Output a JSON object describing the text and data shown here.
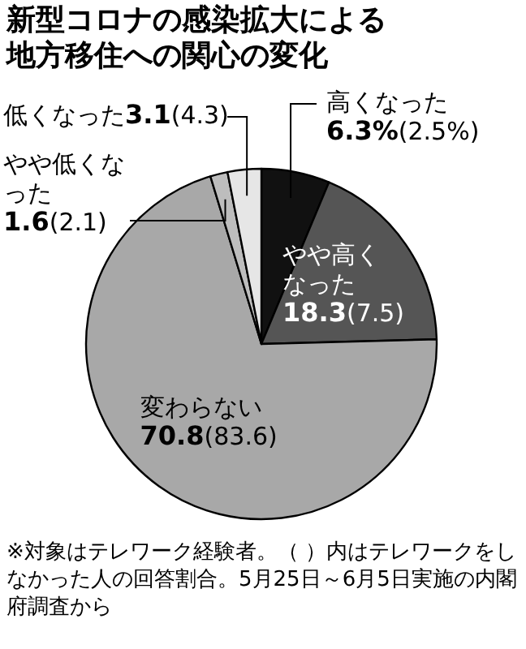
{
  "chart_data": {
    "type": "pie",
    "title": "新型コロナの感染拡大による地方移住への関心の変化",
    "categories": [
      "高くなった",
      "やや高くなった",
      "変わらない",
      "やや低くなった",
      "低くなった"
    ],
    "values": [
      6.3,
      18.3,
      70.8,
      1.6,
      3.1
    ],
    "colors": [
      "#111111",
      "#555555",
      "#a8a8a8",
      "#bdbdbd",
      "#e6e6e6"
    ],
    "value_labels": [
      "**6.3%**(2.5%)",
      "**18.3**(7.5)",
      "**70.8**(83.6)",
      "**1.6**(2.1)",
      "**3.1**(4.3)"
    ],
    "annotations": [
      "※対象はテレワーク経験者。（ ）内はテレワークをしなかった人の回答割合。5月25日～6月5日実施の内閣府調査から"
    ]
  }
}
